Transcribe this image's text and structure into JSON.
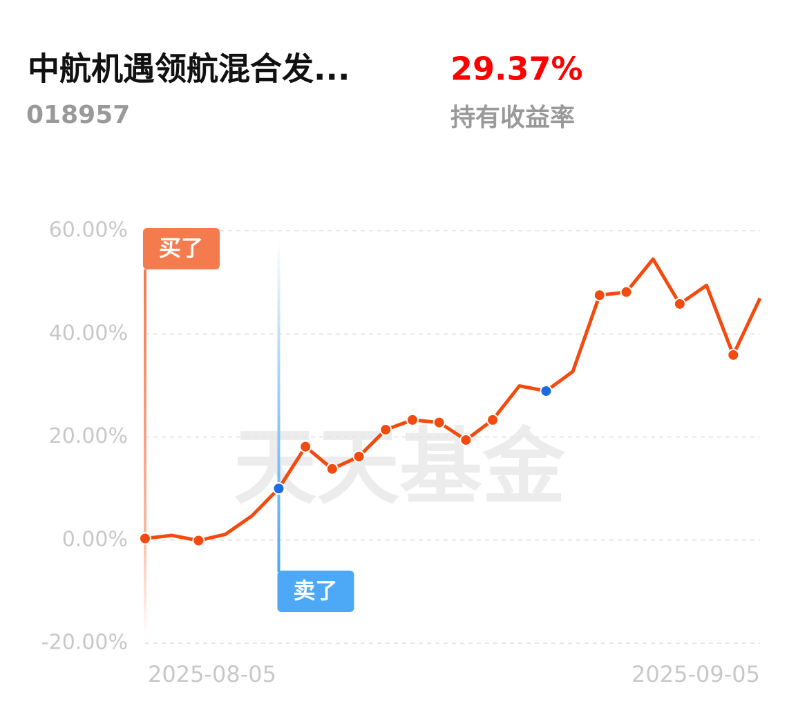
{
  "header": {
    "title": "中航机遇领航混合发...",
    "code": "018957",
    "return": "29.37%",
    "return_label": "持有收益率"
  },
  "chart_data": {
    "type": "line",
    "categories": [
      "2025-08-05",
      null,
      null,
      null,
      null,
      null,
      null,
      null,
      null,
      null,
      null,
      null,
      null,
      null,
      null,
      null,
      null,
      null,
      null,
      null,
      null,
      null,
      null,
      "2025-09-05"
    ],
    "series": [
      {
        "color": "#f24a0f",
        "values": [
          0.3,
          0.9,
          -0.1,
          1.1,
          4.7,
          10.0,
          18.1,
          13.8,
          16.2,
          21.4,
          23.3,
          22.8,
          19.4,
          23.3,
          29.9,
          28.9,
          32.7,
          47.5,
          48.1,
          54.5,
          45.8,
          49.4,
          35.9,
          46.9
        ]
      }
    ],
    "dot_points": [
      0,
      2,
      5,
      6,
      7,
      8,
      9,
      10,
      11,
      12,
      13,
      15,
      17,
      18,
      20,
      22
    ],
    "highlight_points": [
      5,
      15
    ],
    "highlight_color": "#1a6ae0",
    "annotations": [
      {
        "text": "买了",
        "index": 0,
        "color": "#f47b4d",
        "position": "top"
      },
      {
        "text": "卖了",
        "index": 5,
        "color": "#4da8f5",
        "position": "bottom"
      }
    ],
    "watermark": "天天基金",
    "ylim": [
      -20,
      60
    ],
    "yticks": [
      {
        "value": -20,
        "label": "-20.00%"
      },
      {
        "value": 0,
        "label": "0.00%"
      },
      {
        "value": 20,
        "label": "20.00%"
      },
      {
        "value": 40,
        "label": "40.00%"
      },
      {
        "value": 60,
        "label": "60.00%"
      }
    ],
    "grid": true
  }
}
